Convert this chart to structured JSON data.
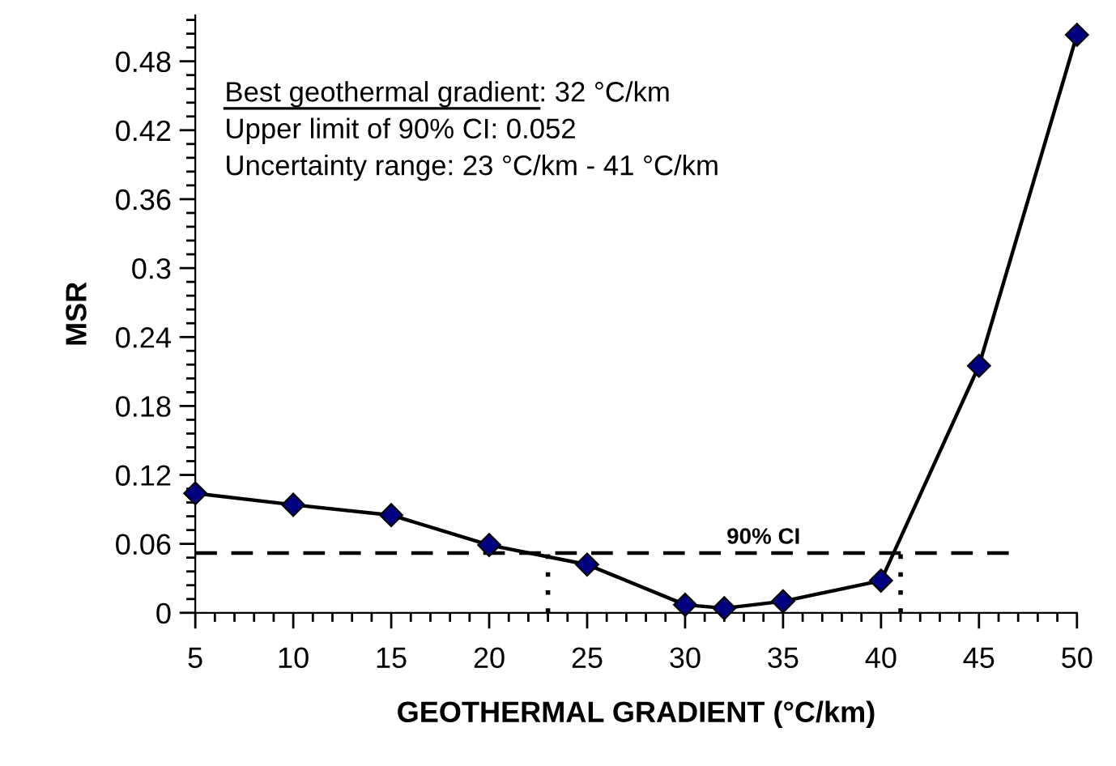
{
  "chart_data": {
    "type": "line",
    "xlabel": "GEOTHERMAL GRADIENT (°C/km)",
    "ylabel": "MSR",
    "x": [
      5,
      10,
      15,
      20,
      25,
      30,
      32,
      35,
      40,
      45,
      50
    ],
    "series": [
      {
        "color": "#000080",
        "values": [
          0.104,
          0.094,
          0.085,
          0.059,
          0.042,
          0.007,
          0.004,
          0.01,
          0.028,
          0.215,
          0.503
        ]
      }
    ],
    "xlim": [
      5,
      50
    ],
    "xticks": [
      5,
      10,
      15,
      20,
      25,
      30,
      35,
      40,
      45,
      50
    ],
    "ylim": [
      0,
      0.52
    ],
    "yticks": [
      0,
      0.06,
      0.12,
      0.18,
      0.24,
      0.3,
      0.36,
      0.42,
      0.48
    ],
    "marker": "diamond",
    "line_style": "solid",
    "grid": false,
    "ref_lines": [
      {
        "axis": "y",
        "value": 0.052,
        "label": "90% CI",
        "line_style": "dashed",
        "color": "#000000"
      },
      {
        "axis": "x",
        "value": 23,
        "line_style": "dotted",
        "color": "#000000"
      },
      {
        "axis": "x",
        "value": 41,
        "line_style": "dotted",
        "color": "#000000"
      }
    ],
    "annotations": [
      "Best geothermal gradient: 32 °C/km",
      "Upper limit of 90% CI: 0.052",
      "Uncertainty range: 23 °C/km - 41 °C/km"
    ]
  }
}
